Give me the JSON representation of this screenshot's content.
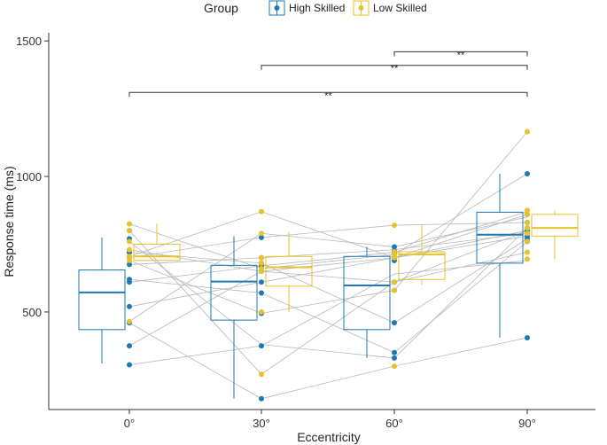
{
  "chart_data": {
    "type": "boxplot",
    "xlabel": "Eccentricity",
    "ylabel": "Response time (ms)",
    "categories": [
      "0°",
      "30°",
      "60°",
      "90°"
    ],
    "yticks": [
      500,
      1000,
      1500
    ],
    "ylim": [
      140,
      1530
    ],
    "legend": {
      "title": "Group",
      "position": "top",
      "entries": [
        {
          "name": "High Skilled",
          "color": "#1f77b4"
        },
        {
          "name": "Low Skilled",
          "color": "#e8c22b"
        }
      ]
    },
    "series": [
      {
        "name": "High Skilled",
        "color": "#1f77b4",
        "boxes": [
          {
            "category": "0°",
            "min": 310,
            "q1": 435,
            "median": 572,
            "q3": 655,
            "max": 775
          },
          {
            "category": "30°",
            "min": 180,
            "q1": 470,
            "median": 612,
            "q3": 672,
            "max": 780
          },
          {
            "category": "60°",
            "min": 330,
            "q1": 435,
            "median": 598,
            "q3": 705,
            "max": 740
          },
          {
            "category": "90°",
            "min": 405,
            "q1": 680,
            "median": 785,
            "q3": 868,
            "max": 1010
          }
        ],
        "points": [
          [
            305,
            375,
            460,
            520,
            610,
            620,
            675,
            720,
            770,
            800
          ],
          [
            180,
            375,
            495,
            570,
            610,
            650,
            670,
            680,
            700,
            775
          ],
          [
            330,
            350,
            460,
            580,
            610,
            690,
            700,
            720,
            725,
            740
          ],
          [
            405,
            760,
            770,
            780,
            790,
            800,
            810,
            830,
            860,
            1010
          ]
        ]
      },
      {
        "name": "Low Skilled",
        "color": "#e8c22b",
        "boxes": [
          {
            "category": "0°",
            "min": 690,
            "q1": 690,
            "median": 705,
            "q3": 750,
            "max": 825
          },
          {
            "category": "30°",
            "min": 500,
            "q1": 595,
            "median": 665,
            "q3": 705,
            "max": 795
          },
          {
            "category": "60°",
            "min": 600,
            "q1": 620,
            "median": 712,
            "q3": 722,
            "max": 820
          },
          {
            "category": "90°",
            "min": 695,
            "q1": 780,
            "median": 810,
            "q3": 860,
            "max": 875
          }
        ],
        "points": [
          [
            465,
            690,
            700,
            705,
            730,
            760,
            800,
            825
          ],
          [
            270,
            500,
            650,
            660,
            680,
            700,
            790,
            870
          ],
          [
            300,
            580,
            610,
            700,
            712,
            722,
            820
          ],
          [
            695,
            720,
            760,
            790,
            810,
            830,
            860,
            875,
            1165
          ]
        ]
      }
    ],
    "connections": [
      [
        305,
        375,
        640,
        690
      ],
      [
        375,
        650,
        700,
        800
      ],
      [
        460,
        180,
        300,
        405
      ],
      [
        520,
        610,
        700,
        860
      ],
      [
        610,
        670,
        720,
        870
      ],
      [
        620,
        570,
        350,
        760
      ],
      [
        675,
        700,
        730,
        790
      ],
      [
        690,
        495,
        580,
        1165
      ],
      [
        700,
        775,
        820,
        830
      ],
      [
        705,
        870,
        700,
        780
      ],
      [
        720,
        680,
        460,
        770
      ],
      [
        730,
        650,
        610,
        800
      ],
      [
        760,
        380,
        330,
        810
      ],
      [
        800,
        270,
        610,
        720
      ],
      [
        825,
        660,
        712,
        1010
      ],
      [
        465,
        790,
        740,
        850
      ]
    ],
    "significance": [
      {
        "from": "0°",
        "to": "90°",
        "y": 1310,
        "label": "**"
      },
      {
        "from": "30°",
        "to": "90°",
        "y": 1410,
        "label": "**"
      },
      {
        "from": "60°",
        "to": "90°",
        "y": 1460,
        "label": "**"
      }
    ]
  }
}
